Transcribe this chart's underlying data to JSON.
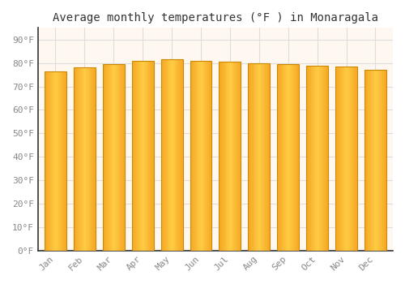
{
  "title": "Average monthly temperatures (°F ) in Monaragala",
  "months": [
    "Jan",
    "Feb",
    "Mar",
    "Apr",
    "May",
    "Jun",
    "Jul",
    "Aug",
    "Sep",
    "Oct",
    "Nov",
    "Dec"
  ],
  "values": [
    76.5,
    78,
    79.5,
    81,
    81.5,
    81,
    80.5,
    80,
    79.5,
    79,
    78.5,
    77
  ],
  "bar_color_center": "#FFCC44",
  "bar_color_edge": "#F5A623",
  "background_color": "#FFFFFF",
  "plot_bg_color": "#FFF8F0",
  "grid_color": "#DDDDDD",
  "ytick_labels": [
    "0°F",
    "10°F",
    "20°F",
    "30°F",
    "40°F",
    "50°F",
    "60°F",
    "70°F",
    "80°F",
    "90°F"
  ],
  "ytick_values": [
    0,
    10,
    20,
    30,
    40,
    50,
    60,
    70,
    80,
    90
  ],
  "ylim": [
    0,
    95
  ],
  "title_fontsize": 10,
  "tick_fontsize": 8,
  "tick_color": "#888888",
  "bar_outline_color": "#CC8800",
  "axis_line_color": "#333333"
}
